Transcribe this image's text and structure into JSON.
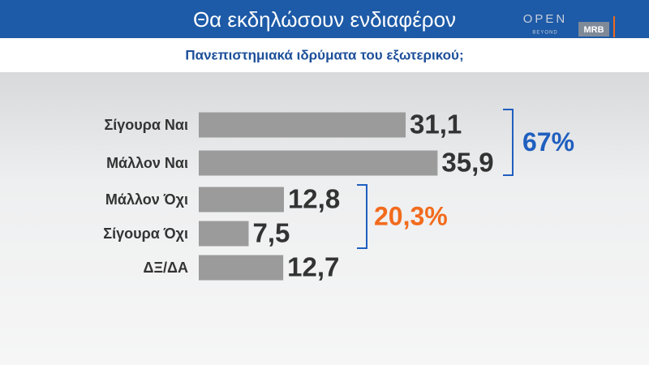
{
  "chart_data": {
    "type": "bar",
    "orientation": "horizontal",
    "title": "Θα εκδηλώσουν ενδιαφέρον",
    "subtitle": "Πανεπιστημιακά ιδρύματα του εξωτερικού;",
    "categories": [
      "Σίγουρα Ναι",
      "Μάλλον Ναι",
      "Μάλλον Όχι",
      "Σίγουρα Όχι",
      "ΔΞ/ΔΑ"
    ],
    "values": [
      31.1,
      35.9,
      12.8,
      7.5,
      12.7
    ],
    "value_labels": [
      "31,1",
      "35,9",
      "12,8",
      "7,5",
      "12,7"
    ],
    "color": "#9b9b9b",
    "annotations": [
      {
        "text": "67%",
        "color": "#1f5fbf"
      },
      {
        "text": "20,3%",
        "color": "#f26b1d"
      }
    ],
    "logos": {
      "open": "OPEN",
      "beyond": "BEYOND",
      "mrb": "MRB"
    }
  }
}
